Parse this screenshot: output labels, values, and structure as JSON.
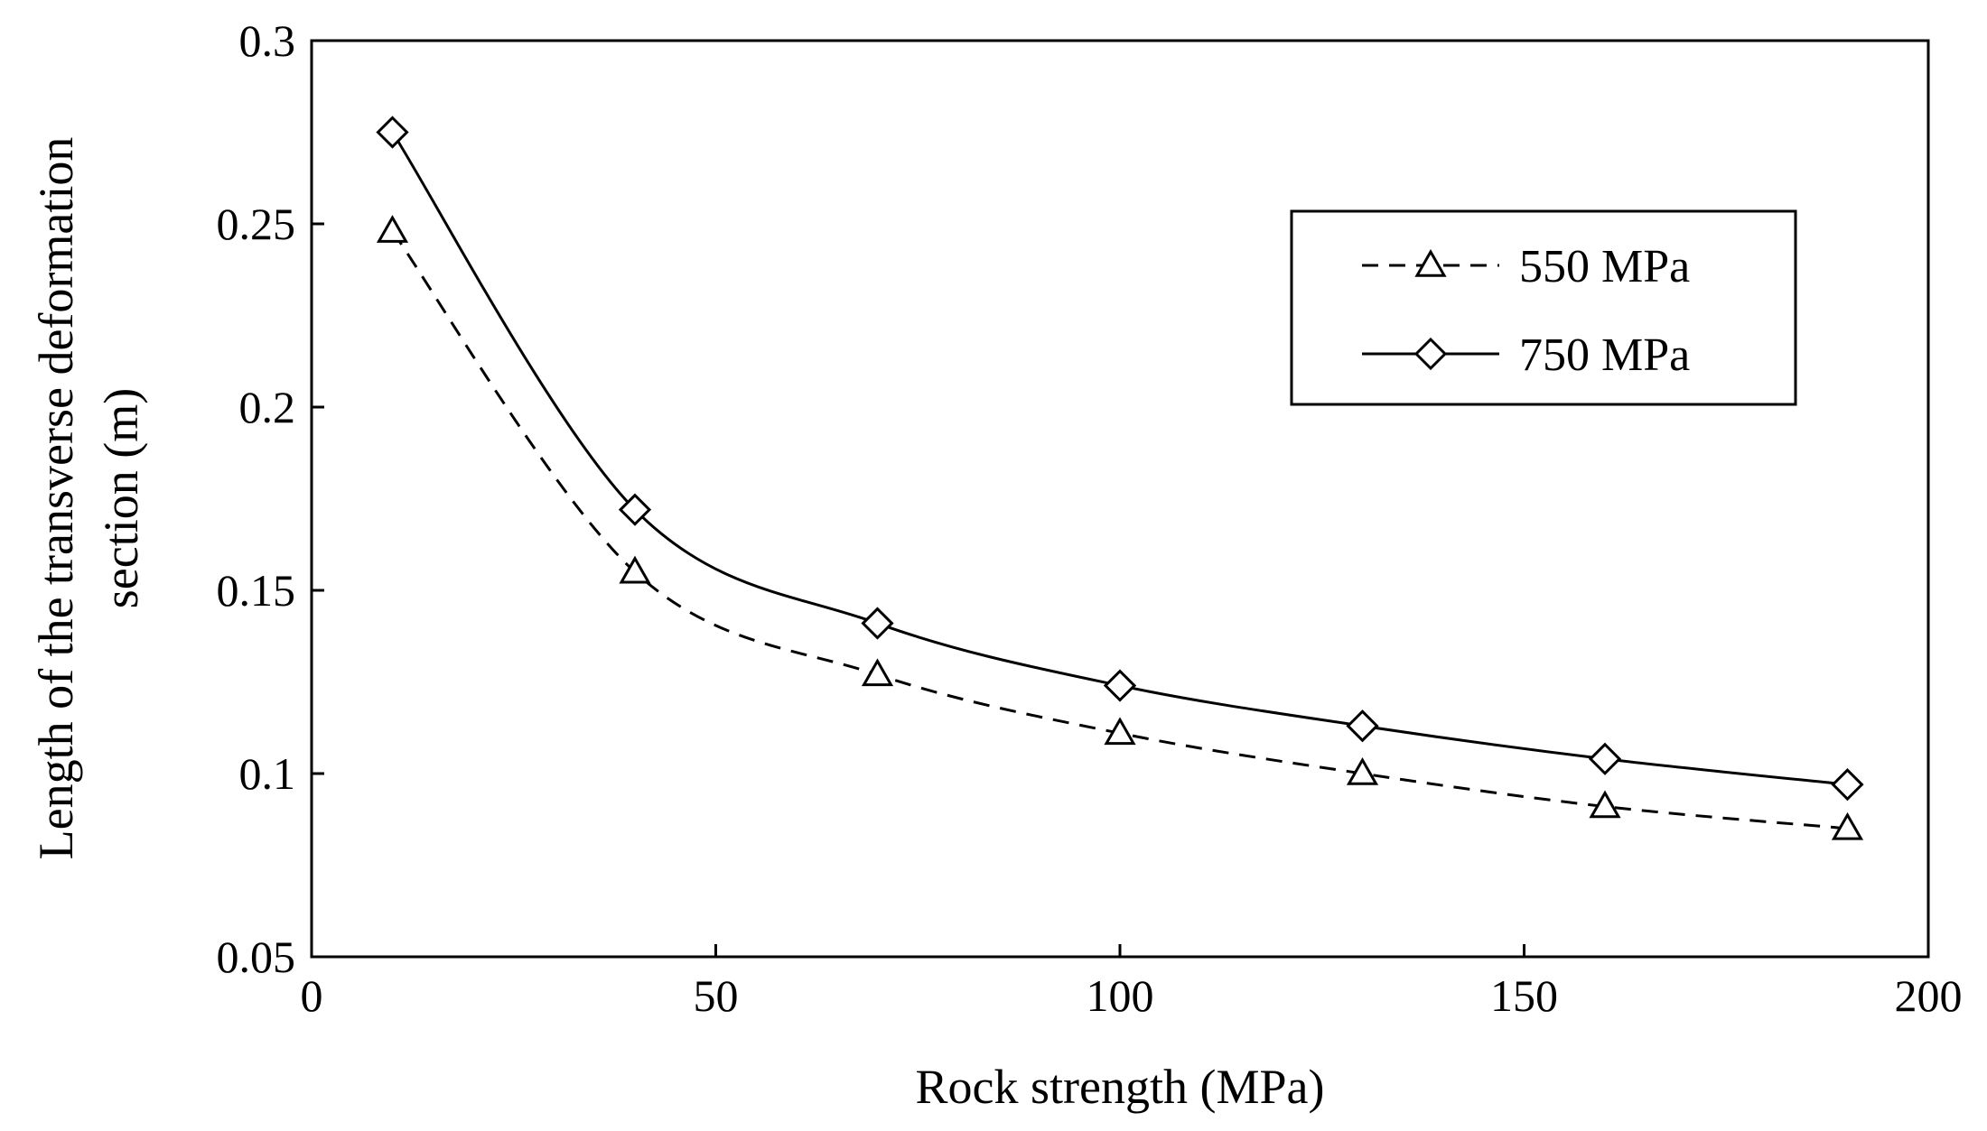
{
  "chart_data": {
    "type": "line",
    "title": "",
    "xlabel": "Rock strength (MPa)",
    "ylabel_lines": [
      "Length of the transverse deformation",
      "section (m)"
    ],
    "xlim": [
      0,
      200
    ],
    "ylim": [
      0.05,
      0.3
    ],
    "x_ticks": [
      0,
      50,
      100,
      150,
      200
    ],
    "x_tick_labels": [
      "0",
      "50",
      "100",
      "150",
      "200"
    ],
    "y_ticks": [
      0.05,
      0.1,
      0.15,
      0.2,
      0.25,
      0.3
    ],
    "y_tick_labels": [
      "0.05",
      "0.1",
      "0.15",
      "0.2",
      "0.25",
      "0.3"
    ],
    "grid": false,
    "legend_position": "top-right",
    "x": [
      10,
      40,
      70,
      100,
      130,
      160,
      190
    ],
    "series": [
      {
        "name": "550 MPa",
        "marker": "triangle",
        "line_style": "dashed",
        "color": "#000000",
        "values": [
          0.248,
          0.155,
          0.127,
          0.111,
          0.1,
          0.091,
          0.085
        ]
      },
      {
        "name": "750 MPa",
        "marker": "diamond",
        "line_style": "solid",
        "color": "#000000",
        "values": [
          0.275,
          0.172,
          0.141,
          0.124,
          0.113,
          0.104,
          0.097
        ]
      }
    ]
  }
}
